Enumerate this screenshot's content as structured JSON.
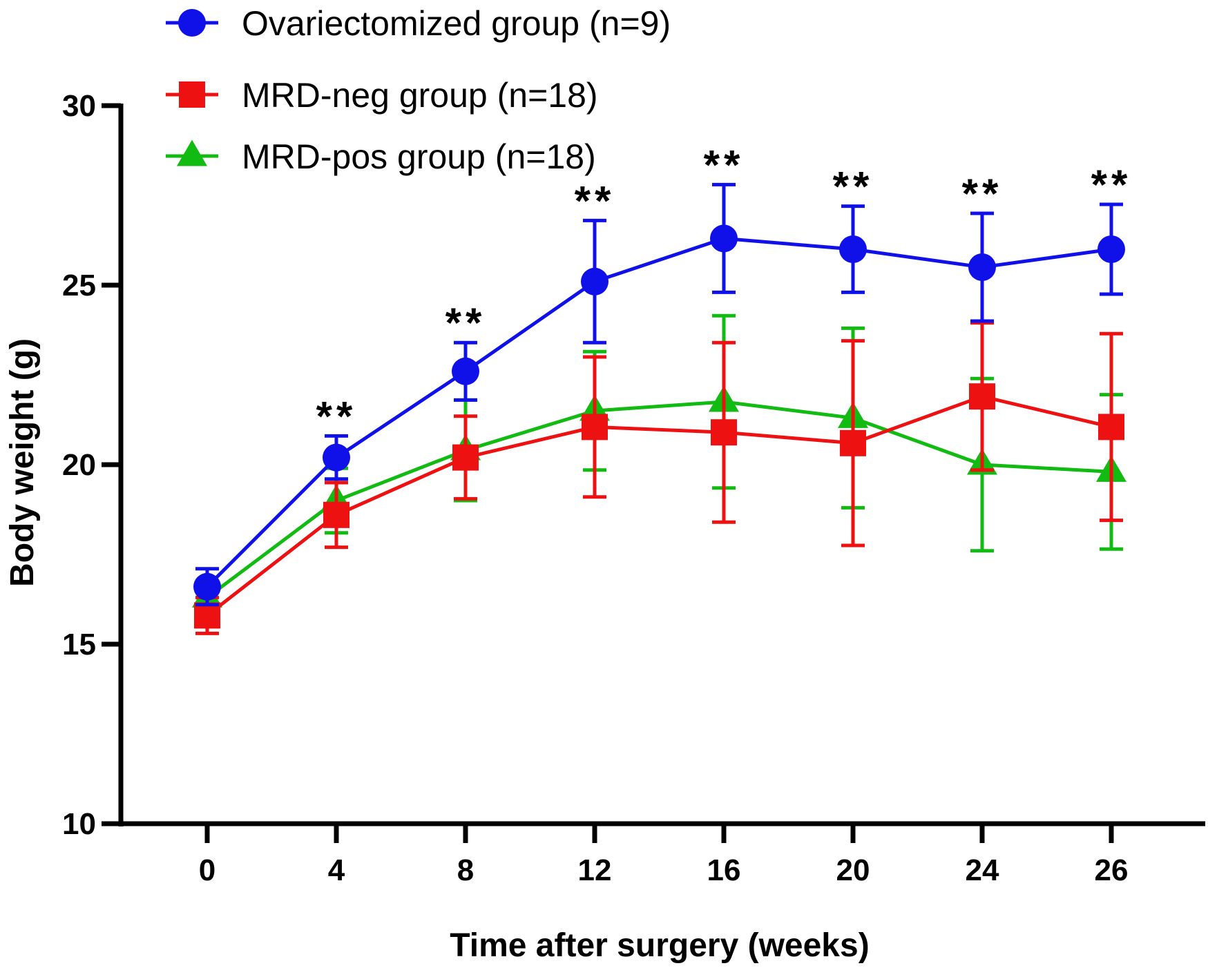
{
  "colors": {
    "ovariectomized": "#1010e8",
    "mrd_neg": "#ee1111",
    "mrd_pos": "#11bb11",
    "axis": "#000000"
  },
  "chart_data": {
    "type": "line",
    "title": "",
    "xlabel": "Time after surgery (weeks)",
    "ylabel": "Body weight (g)",
    "x": [
      0,
      4,
      8,
      12,
      16,
      20,
      24,
      26
    ],
    "x_tick_labels": [
      "0",
      "4",
      "8",
      "12",
      "16",
      "20",
      "24",
      "26"
    ],
    "ylim": [
      10,
      30
    ],
    "y_ticks": [
      10,
      15,
      20,
      25,
      30
    ],
    "y_tick_labels": [
      "10",
      "15",
      "20",
      "25",
      "30"
    ],
    "legend_position": "top-left",
    "series": [
      {
        "key": "ovariectomized",
        "name": "Ovariectomized group (n=9)",
        "marker": "circle",
        "values": [
          16.6,
          20.2,
          22.6,
          25.1,
          26.3,
          26.0,
          25.5,
          26.0
        ],
        "error": [
          0.5,
          0.6,
          0.8,
          1.7,
          1.5,
          1.2,
          1.5,
          1.25
        ]
      },
      {
        "key": "mrd_neg",
        "name": "MRD-neg group (n=18)",
        "marker": "square",
        "values": [
          15.8,
          18.6,
          20.2,
          21.05,
          20.9,
          20.6,
          21.9,
          21.05
        ],
        "error": [
          0.5,
          0.9,
          1.15,
          1.95,
          2.5,
          2.85,
          2.05,
          2.6
        ]
      },
      {
        "key": "mrd_pos",
        "name": "MRD-pos group (n=18)",
        "marker": "triangle",
        "values": [
          16.3,
          19.0,
          20.4,
          21.5,
          21.75,
          21.3,
          20.0,
          19.8
        ],
        "error": [
          0.2,
          0.9,
          1.4,
          1.65,
          2.4,
          2.5,
          2.4,
          2.15
        ]
      }
    ],
    "annotations": [
      {
        "x": 4,
        "text": "**"
      },
      {
        "x": 8,
        "text": "**"
      },
      {
        "x": 12,
        "text": "**"
      },
      {
        "x": 16,
        "text": "**"
      },
      {
        "x": 20,
        "text": "**"
      },
      {
        "x": 24,
        "text": "**"
      },
      {
        "x": 26,
        "text": "**"
      }
    ]
  }
}
